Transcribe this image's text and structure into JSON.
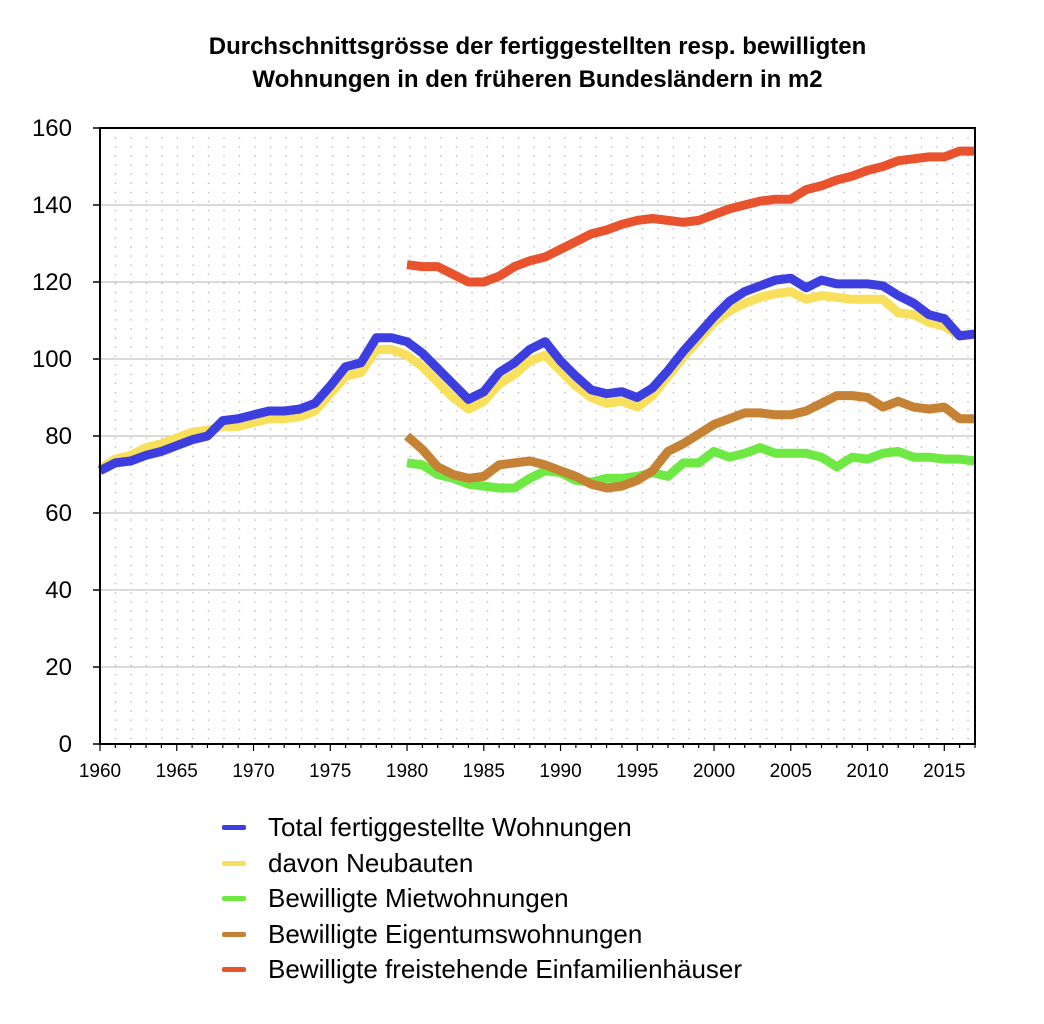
{
  "chart_data": {
    "type": "line",
    "title_lines": [
      "Durchschnittsgrösse der fertiggestellten resp. bewilligten",
      "Wohnungen in den früheren Bundesländern in m2"
    ],
    "xlim": [
      1960,
      2017
    ],
    "ylim": [
      0,
      160
    ],
    "x_ticks": [
      1960,
      1965,
      1970,
      1975,
      1980,
      1985,
      1990,
      1995,
      2000,
      2005,
      2010,
      2015
    ],
    "y_ticks": [
      0,
      20,
      40,
      60,
      80,
      100,
      120,
      140,
      160
    ],
    "grid": true,
    "legend_position": "bottom",
    "series": [
      {
        "name": "davon Neubauten",
        "color": "#f8df5c",
        "x": [
          1960,
          1961,
          1962,
          1963,
          1964,
          1965,
          1966,
          1967,
          1968,
          1969,
          1970,
          1971,
          1972,
          1973,
          1974,
          1975,
          1976,
          1977,
          1978,
          1979,
          1980,
          1981,
          1982,
          1983,
          1984,
          1985,
          1986,
          1987,
          1988,
          1989,
          1990,
          1991,
          1992,
          1993,
          1994,
          1995,
          1996,
          1997,
          1998,
          1999,
          2000,
          2001,
          2002,
          2003,
          2004,
          2005,
          2006,
          2007,
          2008,
          2009,
          2010,
          2011,
          2012,
          2013,
          2014,
          2015,
          2016,
          2017
        ],
        "y": [
          71.5,
          74,
          75,
          77,
          78,
          79.5,
          81,
          81.5,
          82.5,
          82.5,
          83.5,
          84.5,
          84.5,
          85,
          86.5,
          91,
          95.5,
          96.5,
          102.5,
          102.5,
          101,
          98,
          94,
          90,
          87,
          89,
          93.5,
          96,
          99.5,
          101,
          97,
          93,
          90,
          88.5,
          89,
          87.5,
          90.5,
          95.5,
          100.5,
          105,
          109.5,
          112.5,
          114.5,
          116,
          117,
          117.5,
          115.5,
          116.5,
          116,
          115.5,
          115.5,
          115.5,
          112,
          111.5,
          109.5,
          108.5,
          106,
          106.5
        ]
      },
      {
        "name": "Total fertiggestellte Wohnungen",
        "color": "#3d3ee0",
        "x": [
          1960,
          1961,
          1962,
          1963,
          1964,
          1965,
          1966,
          1967,
          1968,
          1969,
          1970,
          1971,
          1972,
          1973,
          1974,
          1975,
          1976,
          1977,
          1978,
          1979,
          1980,
          1981,
          1982,
          1983,
          1984,
          1985,
          1986,
          1987,
          1988,
          1989,
          1990,
          1991,
          1992,
          1993,
          1994,
          1995,
          1996,
          1997,
          1998,
          1999,
          2000,
          2001,
          2002,
          2003,
          2004,
          2005,
          2006,
          2007,
          2008,
          2009,
          2010,
          2011,
          2012,
          2013,
          2014,
          2015,
          2016,
          2017
        ],
        "y": [
          71,
          73,
          73.5,
          75,
          76,
          77.5,
          79,
          80,
          84,
          84.5,
          85.5,
          86.5,
          86.5,
          87,
          88.5,
          93,
          98,
          99,
          105.5,
          105.5,
          104.5,
          101.5,
          97.5,
          93.5,
          89.5,
          91.5,
          96.5,
          99,
          102.5,
          104.5,
          99.5,
          95.5,
          92,
          91,
          91.5,
          90,
          92.5,
          97,
          102,
          106.5,
          111,
          115,
          117.5,
          119,
          120.5,
          121,
          118.5,
          120.5,
          119.5,
          119.5,
          119.5,
          119,
          116.5,
          114.5,
          111.5,
          110.5,
          106,
          106.5
        ]
      },
      {
        "name": "Bewilligte Mietwohnungen",
        "color": "#6ee944",
        "x": [
          1980,
          1981,
          1982,
          1983,
          1984,
          1985,
          1986,
          1987,
          1988,
          1989,
          1990,
          1991,
          1992,
          1993,
          1994,
          1995,
          1996,
          1997,
          1998,
          1999,
          2000,
          2001,
          2002,
          2003,
          2004,
          2005,
          2006,
          2007,
          2008,
          2009,
          2010,
          2011,
          2012,
          2013,
          2014,
          2015,
          2016,
          2017
        ],
        "y": [
          73,
          72.5,
          70,
          69,
          67.5,
          67,
          66.5,
          66.5,
          69,
          71,
          70.5,
          68.5,
          68,
          69,
          69,
          69.5,
          70.5,
          69.5,
          73,
          73,
          76,
          74.5,
          75.5,
          77,
          75.5,
          75.5,
          75.5,
          74.5,
          72,
          74.5,
          74,
          75.5,
          76,
          74.5,
          74.5,
          74,
          74,
          73.5
        ]
      },
      {
        "name": "Bewilligte Eigentumswohnungen",
        "color": "#c58235",
        "x": [
          1980,
          1981,
          1982,
          1983,
          1984,
          1985,
          1986,
          1987,
          1988,
          1989,
          1990,
          1991,
          1992,
          1993,
          1994,
          1995,
          1996,
          1997,
          1998,
          1999,
          2000,
          2001,
          2002,
          2003,
          2004,
          2005,
          2006,
          2007,
          2008,
          2009,
          2010,
          2011,
          2012,
          2013,
          2014,
          2015,
          2016,
          2017
        ],
        "y": [
          80,
          76.5,
          72,
          70,
          69,
          69.5,
          72.5,
          73,
          73.5,
          72.5,
          71,
          69.5,
          67.5,
          66.5,
          67,
          68.5,
          71,
          76,
          78,
          80.5,
          83,
          84.5,
          86,
          86,
          85.5,
          85.5,
          86.5,
          88.5,
          90.5,
          90.5,
          90,
          87.5,
          89,
          87.5,
          87,
          87.5,
          84.5,
          84.5
        ]
      },
      {
        "name": "Bewilligte freistehende Einfamilienhäuser",
        "color": "#e8532e",
        "x": [
          1980,
          1981,
          1982,
          1983,
          1984,
          1985,
          1986,
          1987,
          1988,
          1989,
          1990,
          1991,
          1992,
          1993,
          1994,
          1995,
          1996,
          1997,
          1998,
          1999,
          2000,
          2001,
          2002,
          2003,
          2004,
          2005,
          2006,
          2007,
          2008,
          2009,
          2010,
          2011,
          2012,
          2013,
          2014,
          2015,
          2016,
          2017
        ],
        "y": [
          124.5,
          124,
          124,
          122,
          120,
          120,
          121.5,
          124,
          125.5,
          126.5,
          128.5,
          130.5,
          132.5,
          133.5,
          135,
          136,
          136.5,
          136,
          135.5,
          136,
          137.5,
          139,
          140,
          141,
          141.5,
          141.5,
          144,
          145,
          146.5,
          147.5,
          149,
          150,
          151.5,
          152,
          152.5,
          152.5,
          154,
          154
        ]
      }
    ],
    "legend_order": [
      "Total fertiggestellte Wohnungen",
      "davon Neubauten",
      "Bewilligte Mietwohnungen",
      "Bewilligte Eigentumswohnungen",
      "Bewilligte freistehende Einfamilienhäuser"
    ]
  }
}
